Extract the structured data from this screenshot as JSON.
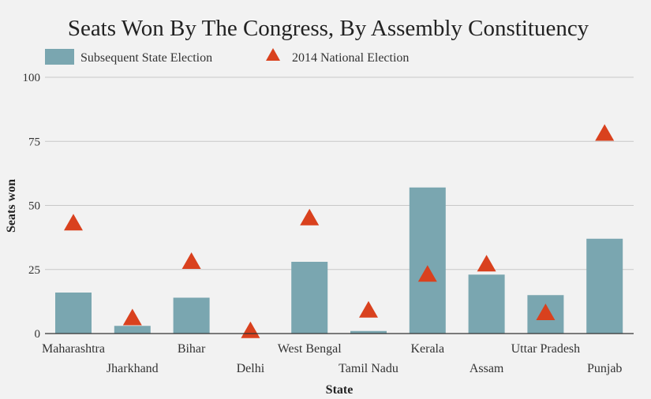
{
  "chart_data": {
    "type": "bar",
    "title": "Seats Won By The Congress, By Assembly Constituency",
    "xlabel": "State",
    "ylabel": "Seats won",
    "ylim": [
      0,
      100
    ],
    "yticks": [
      0,
      25,
      50,
      75,
      100
    ],
    "grid": true,
    "legend_position": "top-left",
    "categories": [
      "Maharashtra",
      "Jharkhand",
      "Bihar",
      "Delhi",
      "West Bengal",
      "Tamil Nadu",
      "Kerala",
      "Assam",
      "Uttar Pradesh",
      "Punjab"
    ],
    "series": [
      {
        "name": "Subsequent State Election",
        "mark": "bar",
        "color": "#7aa6b0",
        "values": [
          16,
          3,
          14,
          0,
          28,
          1,
          57,
          23,
          15,
          37
        ]
      },
      {
        "name": "2014 National Election",
        "mark": "triangle",
        "color": "#d9411e",
        "values": [
          43,
          6,
          28,
          1,
          45,
          9,
          23,
          27,
          8,
          78
        ]
      }
    ]
  }
}
